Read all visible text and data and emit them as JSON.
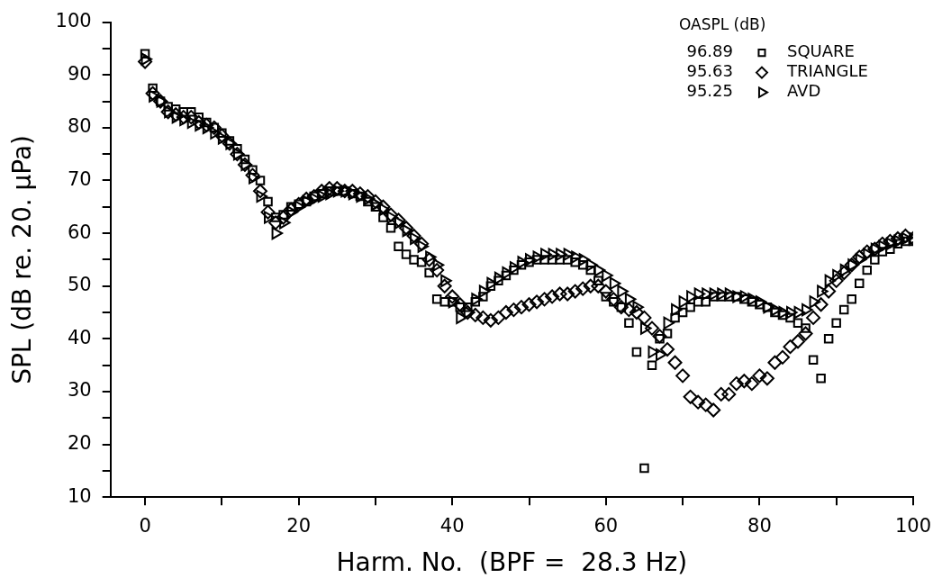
{
  "chart_data": {
    "type": "scatter",
    "xlabel": "Harm. No.  (BPF =  28.3 Hz)",
    "ylabel": "SPL (dB re. 20. μPa)",
    "legend_title": "OASPL (dB)",
    "legend": "top right",
    "annotations": [
      "96.89",
      "95.63",
      "95.25"
    ],
    "xlim": [
      -4.5,
      100
    ],
    "xticks": [
      0,
      {
        "value": 10,
        "label": null
      },
      20,
      {
        "value": 30,
        "label": null
      },
      40,
      {
        "value": 50,
        "label": null
      },
      60,
      {
        "value": 70,
        "label": null
      },
      80,
      {
        "value": 90,
        "label": null
      },
      100
    ],
    "ylim": [
      10,
      100
    ],
    "yticks": [
      10,
      {
        "value": 15,
        "label": null
      },
      20,
      {
        "value": 25,
        "label": null
      },
      30,
      {
        "value": 35,
        "label": null
      },
      40,
      {
        "value": 45,
        "label": null
      },
      50,
      {
        "value": 55,
        "label": null
      },
      60,
      {
        "value": 65,
        "label": null
      },
      70,
      {
        "value": 75,
        "label": null
      },
      80,
      {
        "value": 85,
        "label": null
      },
      90,
      {
        "value": 95,
        "label": null
      },
      100
    ],
    "grid": false,
    "x": [
      0,
      1,
      2,
      3,
      4,
      5,
      6,
      7,
      8,
      9,
      10,
      11,
      12,
      13,
      14,
      15,
      16,
      17,
      18,
      19,
      20,
      21,
      22,
      23,
      24,
      25,
      26,
      27,
      28,
      29,
      30,
      31,
      32,
      33,
      34,
      35,
      36,
      37,
      38,
      39,
      40,
      41,
      42,
      43,
      44,
      45,
      46,
      47,
      48,
      49,
      50,
      51,
      52,
      53,
      54,
      55,
      56,
      57,
      58,
      59,
      60,
      61,
      62,
      63,
      64,
      65,
      66,
      67,
      68,
      69,
      70,
      71,
      72,
      73,
      74,
      75,
      76,
      77,
      78,
      79,
      80,
      81,
      82,
      83,
      84,
      85,
      86,
      87,
      88,
      89,
      90,
      91,
      92,
      93,
      94,
      95,
      96,
      97,
      98,
      99,
      100
    ],
    "series": [
      {
        "name": "SQUARE",
        "color": "#000000",
        "marker": "square",
        "values": [
          94,
          87.5,
          85,
          84,
          83.5,
          83,
          83,
          82,
          81,
          80,
          79,
          77.5,
          76,
          74,
          72,
          70,
          66,
          63,
          63.5,
          65,
          65.5,
          66,
          67,
          67.5,
          68,
          68,
          68,
          67.5,
          67,
          66,
          65,
          63,
          61,
          57.5,
          56,
          55,
          54.5,
          52.5,
          47.5,
          47,
          47,
          46,
          46,
          47,
          48,
          50,
          51,
          52,
          53,
          54,
          54.5,
          55,
          55,
          55,
          55,
          55,
          54.5,
          54,
          53,
          51,
          48,
          47,
          46,
          43,
          37.5,
          15.5,
          35,
          40,
          41,
          44,
          45,
          46,
          47,
          47,
          48,
          48,
          48,
          48,
          47.5,
          47,
          46.5,
          46,
          45,
          44.5,
          44,
          43,
          42,
          36,
          32.5,
          40,
          43,
          45.5,
          47.5,
          50.5,
          53,
          55,
          56.5,
          57,
          58,
          58.5,
          58.5
        ]
      },
      {
        "name": "TRIANGLE",
        "color": "#000000",
        "marker": "diamond",
        "values": [
          92.5,
          86.5,
          85,
          83,
          82.5,
          82,
          82,
          81,
          80.5,
          80,
          78.5,
          77,
          75,
          73,
          71,
          68,
          64,
          62,
          63,
          64.5,
          65.5,
          66.5,
          67,
          68,
          68.5,
          68.5,
          68,
          68,
          67.5,
          67,
          66,
          65,
          63.5,
          62.5,
          61,
          59.5,
          58,
          55,
          53,
          50,
          48,
          46.5,
          45,
          44.5,
          44,
          43.5,
          44,
          45,
          45.5,
          46,
          46.5,
          47,
          47.5,
          48,
          48.5,
          48.5,
          49,
          49.5,
          50,
          50,
          49,
          47.5,
          46,
          45.5,
          45,
          44,
          42,
          40.5,
          38,
          35.5,
          33,
          29,
          28,
          27.5,
          26.5,
          29.5,
          29.5,
          31.5,
          32,
          31.5,
          33,
          32.5,
          35.5,
          36.5,
          38.5,
          39.5,
          41,
          44,
          46.5,
          49,
          51,
          52.5,
          54,
          55.5,
          56.5,
          57,
          58,
          58.5,
          59,
          59.5,
          59
        ]
      },
      {
        "name": "AVD",
        "color": "#000000",
        "marker": "triangle",
        "values": [
          93,
          86,
          85,
          83,
          82,
          81.5,
          81,
          80.5,
          80,
          79,
          78,
          77,
          75,
          73,
          70.5,
          67,
          63,
          60,
          62,
          64,
          65,
          66,
          66.5,
          67,
          67.5,
          68,
          68,
          67.5,
          67,
          66.5,
          65.5,
          64.5,
          63,
          62,
          60.5,
          59,
          57.5,
          55.5,
          54,
          51,
          47,
          44,
          45,
          47.5,
          49,
          50.5,
          51.5,
          52.5,
          53.5,
          54.5,
          55,
          55.5,
          56,
          56,
          56,
          56,
          55.5,
          55,
          54,
          53,
          52,
          50.5,
          49,
          47.5,
          46,
          42,
          37.5,
          37,
          43,
          45.5,
          47,
          48,
          48.5,
          48.5,
          48.5,
          48.5,
          48.5,
          48,
          48,
          47.5,
          47,
          46,
          45.5,
          45,
          45,
          45,
          45.5,
          47,
          49,
          51,
          52,
          53,
          54,
          55,
          56,
          57,
          57.5,
          58,
          58.5,
          59,
          59
        ]
      }
    ]
  }
}
